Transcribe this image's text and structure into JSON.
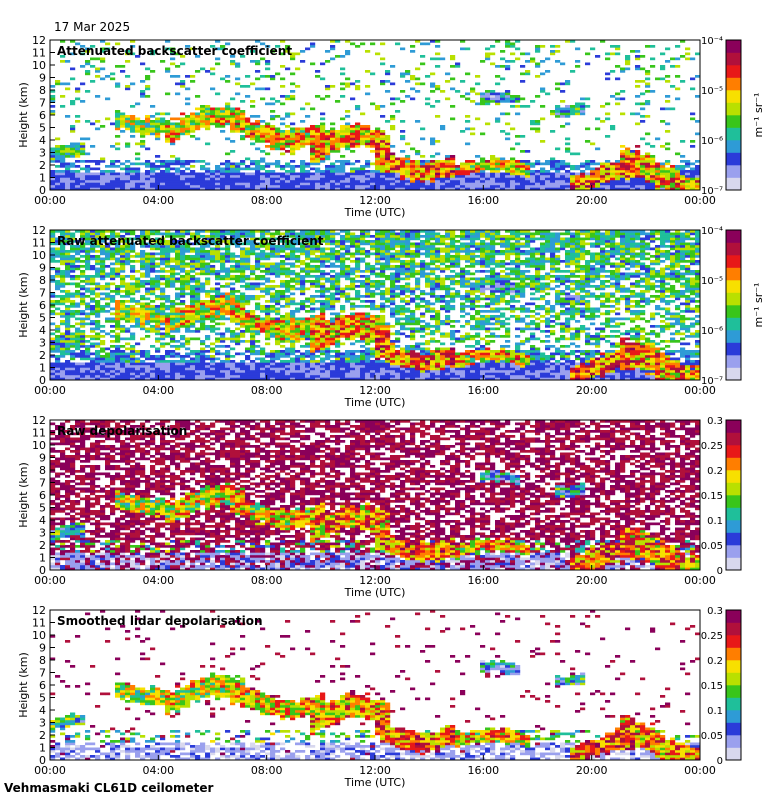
{
  "header": {
    "date": "17 Mar 2025"
  },
  "footer": {
    "site": "Vehmasmaki CL61D ceilometer"
  },
  "colors": {
    "scale": [
      "#d8d8ee",
      "#9aa0ee",
      "#2b3bd9",
      "#2e9bd6",
      "#1fbf9a",
      "#39c51a",
      "#b9e000",
      "#f7e000",
      "#ff7e00",
      "#e81818",
      "#b0103b",
      "#8a005a"
    ]
  },
  "chart_data": [
    {
      "type": "heatmap",
      "title": "Attenuated backscatter coefficient",
      "xlabel": "Time (UTC)",
      "ylabel": "Height (km)",
      "xticks": [
        "00:00",
        "04:00",
        "08:00",
        "12:00",
        "16:00",
        "20:00",
        "00:00"
      ],
      "yticks": [
        "0",
        "1",
        "2",
        "3",
        "4",
        "5",
        "6",
        "7",
        "8",
        "9",
        "10",
        "11",
        "12"
      ],
      "ylim": [
        0,
        12
      ],
      "colorbar": {
        "scale": "log",
        "ticks": [
          "10⁻⁷",
          "10⁻⁶",
          "10⁻⁵",
          "10⁻⁴"
        ],
        "range": [
          1e-07,
          0.0001
        ],
        "unit": "m⁻¹ sr⁻¹"
      },
      "mode": "backscatter",
      "noise": 0.18
    },
    {
      "type": "heatmap",
      "title": "Raw attenuated backscatter coefficient",
      "xlabel": "Time (UTC)",
      "ylabel": "Height (km)",
      "xticks": [
        "00:00",
        "04:00",
        "08:00",
        "12:00",
        "16:00",
        "20:00",
        "00:00"
      ],
      "yticks": [
        "0",
        "1",
        "2",
        "3",
        "4",
        "5",
        "6",
        "7",
        "8",
        "9",
        "10",
        "11",
        "12"
      ],
      "ylim": [
        0,
        12
      ],
      "colorbar": {
        "scale": "log",
        "ticks": [
          "10⁻⁷",
          "10⁻⁶",
          "10⁻⁵",
          "10⁻⁴"
        ],
        "range": [
          1e-07,
          0.0001
        ],
        "unit": "m⁻¹ sr⁻¹"
      },
      "mode": "backscatter",
      "noise": 0.9
    },
    {
      "type": "heatmap",
      "title": "Raw depolarisation",
      "xlabel": "Time (UTC)",
      "ylabel": "Height (km)",
      "xticks": [
        "00:00",
        "04:00",
        "08:00",
        "12:00",
        "16:00",
        "20:00",
        "00:00"
      ],
      "yticks": [
        "0",
        "1",
        "2",
        "3",
        "4",
        "5",
        "6",
        "7",
        "8",
        "9",
        "10",
        "11",
        "12"
      ],
      "ylim": [
        0,
        12
      ],
      "colorbar": {
        "scale": "linear",
        "ticks": [
          "0",
          "0.05",
          "0.1",
          "0.15",
          "0.2",
          "0.25",
          "0.3"
        ],
        "range": [
          0,
          0.3
        ],
        "unit": ""
      },
      "mode": "depol",
      "noise": 0.95
    },
    {
      "type": "heatmap",
      "title": "Smoothed lidar depolarisation",
      "xlabel": "Time (UTC)",
      "ylabel": "Height (km)",
      "xticks": [
        "00:00",
        "04:00",
        "08:00",
        "12:00",
        "16:00",
        "20:00",
        "00:00"
      ],
      "yticks": [
        "0",
        "1",
        "2",
        "3",
        "4",
        "5",
        "6",
        "7",
        "8",
        "9",
        "10",
        "11",
        "12"
      ],
      "ylim": [
        0,
        12
      ],
      "colorbar": {
        "scale": "linear",
        "ticks": [
          "0",
          "0.05",
          "0.1",
          "0.15",
          "0.2",
          "0.25",
          "0.3"
        ],
        "range": [
          0,
          0.3
        ],
        "unit": ""
      },
      "mode": "depol",
      "noise": 0.06
    }
  ]
}
